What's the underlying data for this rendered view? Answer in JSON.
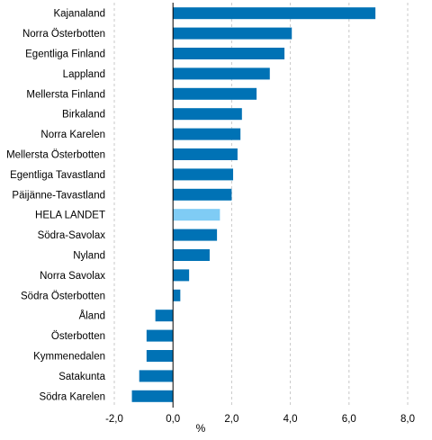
{
  "chart_data": {
    "type": "bar",
    "orientation": "horizontal",
    "categories": [
      "Kajanaland",
      "Norra Österbotten",
      "Egentliga Finland",
      "Lappland",
      "Mellersta Finland",
      "Birkaland",
      "Norra Karelen",
      "Mellersta Österbotten",
      "Egentliga Tavastland",
      "Päijänne-Tavastland",
      "HELA LANDET",
      "Södra-Savolax",
      "Nyland",
      "Norra Savolax",
      "Södra Österbotten",
      "Åland",
      "Österbotten",
      "Kymmenedalen",
      "Satakunta",
      "Södra Karelen"
    ],
    "values": [
      6.9,
      4.05,
      3.8,
      3.3,
      2.85,
      2.35,
      2.3,
      2.2,
      2.05,
      2.0,
      1.6,
      1.5,
      1.25,
      0.55,
      0.25,
      -0.6,
      -0.9,
      -0.9,
      -1.15,
      -1.4
    ],
    "highlight_category": "HELA LANDET",
    "xlabel": "%",
    "xlim": [
      -2.0,
      8.0
    ],
    "xticks": [
      -2.0,
      0.0,
      2.0,
      4.0,
      6.0,
      8.0
    ],
    "xtick_labels": [
      "-2,0",
      "0,0",
      "2,0",
      "4,0",
      "6,0",
      "8,0"
    ],
    "grid": "vertical, dashed",
    "colors": {
      "bar": "#0072b5",
      "highlight": "#7fccf5",
      "grid": "#c8c8c8",
      "axis": "#000000"
    }
  }
}
